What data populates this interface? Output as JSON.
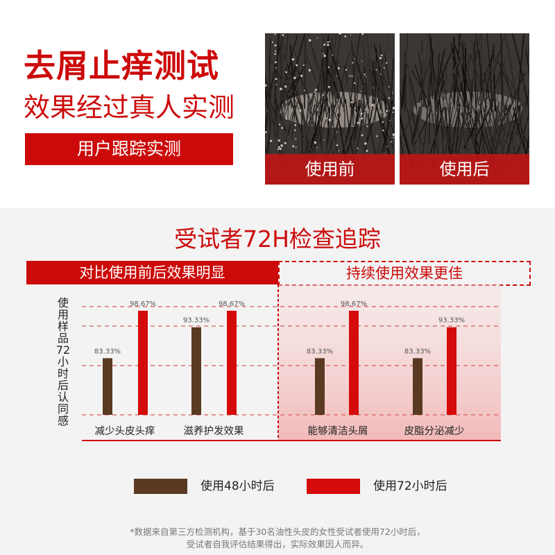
{
  "header": {
    "title": "去屑止痒测试",
    "subtitle": "效果经过真人实测",
    "tag": "用户跟踪实测"
  },
  "photos": [
    {
      "caption": "使用前"
    },
    {
      "caption": "使用后"
    }
  ],
  "section": {
    "title": "受试者72H检查追踪",
    "left_band": "对比使用前后效果明显",
    "right_band": "持续使用效果更佳"
  },
  "chart_data": {
    "type": "bar",
    "ylabel": "使用样品72小时后认同感",
    "categories": [
      "减少头皮头痒",
      "滋养护发效果",
      "能够清洁头屑",
      "皮脂分泌减少"
    ],
    "series": [
      {
        "name": "使用48小时后",
        "color": "#5a3a22",
        "values": [
          83.33,
          93.33,
          83.33,
          83.33
        ],
        "labels": [
          "83.33%",
          "93.33%",
          "83.33%",
          "83.33%"
        ]
      },
      {
        "name": "使用72小时后",
        "color": "#d50a0a",
        "values": [
          98.67,
          98.67,
          98.67,
          93.33
        ],
        "labels": [
          "98.67%",
          "98.67%",
          "98.67%",
          "93.33%"
        ]
      }
    ],
    "ylim": [
      65,
      100
    ],
    "grid": true,
    "legend": "bottom"
  },
  "legend": [
    {
      "label": "使用48小时后"
    },
    {
      "label": "使用72小时后"
    }
  ],
  "footnote": {
    "line1": "*数据来自第三方检测机构，基于30名油性头皮的女性受试者使用72小时后，",
    "line2": "受试者自我评估结果得出，实际效果因人而异。"
  }
}
